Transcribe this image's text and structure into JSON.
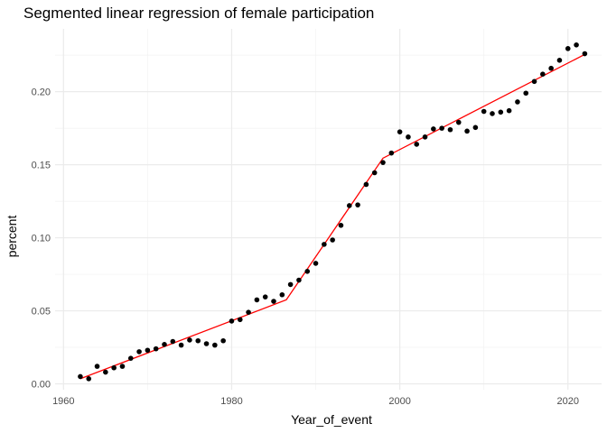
{
  "chart_data": {
    "type": "scatter",
    "title": "Segmented linear regression of female participation",
    "xlabel": "Year_of_event",
    "ylabel": "percent",
    "xlim": [
      1959,
      2024
    ],
    "ylim": [
      -0.004,
      0.243
    ],
    "x_ticks": [
      1960,
      1980,
      2000,
      2020
    ],
    "x_tick_labels": [
      "1960",
      "1980",
      "2000",
      "2020"
    ],
    "y_ticks": [
      0.0,
      0.05,
      0.1,
      0.15,
      0.2
    ],
    "y_tick_labels": [
      "0.00",
      "0.05",
      "0.10",
      "0.15",
      "0.20"
    ],
    "grid": true,
    "point_color": "#000000",
    "line_color": "#ff0000",
    "points": {
      "x": [
        1962,
        1963,
        1964,
        1965,
        1966,
        1967,
        1968,
        1969,
        1970,
        1971,
        1972,
        1973,
        1974,
        1975,
        1976,
        1977,
        1978,
        1979,
        1980,
        1981,
        1982,
        1983,
        1984,
        1985,
        1986,
        1987,
        1988,
        1989,
        1990,
        1991,
        1992,
        1993,
        1994,
        1995,
        1996,
        1997,
        1998,
        1999,
        2000,
        2001,
        2002,
        2003,
        2004,
        2005,
        2006,
        2007,
        2008,
        2009,
        2010,
        2011,
        2012,
        2013,
        2014,
        2015,
        2016,
        2017,
        2018,
        2019,
        2020,
        2021,
        2022
      ],
      "y": [
        0.005,
        0.0035,
        0.012,
        0.008,
        0.011,
        0.012,
        0.0175,
        0.022,
        0.023,
        0.024,
        0.027,
        0.029,
        0.0265,
        0.03,
        0.0295,
        0.0275,
        0.0265,
        0.0295,
        0.043,
        0.044,
        0.049,
        0.0575,
        0.0595,
        0.0565,
        0.061,
        0.068,
        0.071,
        0.077,
        0.0825,
        0.0955,
        0.0985,
        0.1085,
        0.122,
        0.1225,
        0.1365,
        0.1445,
        0.1515,
        0.158,
        0.1725,
        0.169,
        0.164,
        0.169,
        0.1745,
        0.175,
        0.174,
        0.179,
        0.173,
        0.1755,
        0.1865,
        0.185,
        0.186,
        0.187,
        0.193,
        0.199,
        0.207,
        0.212,
        0.216,
        0.2215,
        0.2295,
        0.232,
        0.226
      ]
    },
    "fit_line": {
      "x": [
        1962,
        1986.5,
        1998,
        2022
      ],
      "y": [
        0.0035,
        0.0575,
        0.1545,
        0.2255
      ]
    }
  }
}
